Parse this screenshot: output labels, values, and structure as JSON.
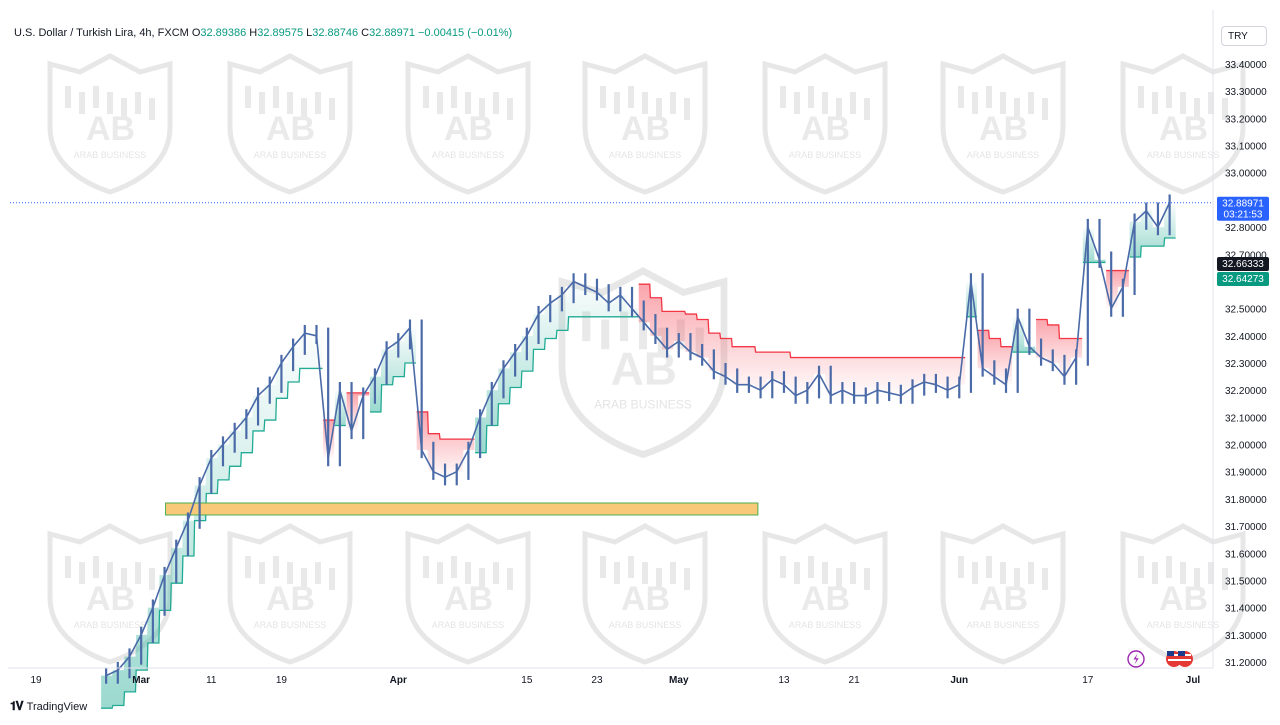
{
  "header": {
    "symbol": "U.S. Dollar / Turkish Lira, 4h, FXCM",
    "open_label": "O",
    "open": "32.89386",
    "high_label": "H",
    "high": "32.89575",
    "low_label": "L",
    "low": "32.88746",
    "close_label": "C",
    "close": "32.88971",
    "change": "−0.00415 (−0.01%)"
  },
  "currency_button": "TRY",
  "footer": {
    "brand": "TradingView"
  },
  "watermark": {
    "text": "ARAB BUSINESS"
  },
  "chart_data": {
    "type": "line",
    "ylim": [
      31.18,
      33.46
    ],
    "y_ticks": [
      "33.40000",
      "33.30000",
      "33.20000",
      "33.10000",
      "33.00000",
      "32.90000",
      "32.80000",
      "32.70000",
      "32.60000",
      "32.50000",
      "32.40000",
      "32.30000",
      "32.20000",
      "32.10000",
      "32.00000",
      "31.90000",
      "31.80000",
      "31.70000",
      "31.60000",
      "31.50000",
      "31.40000",
      "31.30000",
      "31.20000"
    ],
    "x_ticks": [
      {
        "label": "19",
        "idx": 0,
        "bold": false
      },
      {
        "label": "Mar",
        "idx": 9,
        "bold": true
      },
      {
        "label": "11",
        "idx": 15,
        "bold": false
      },
      {
        "label": "19",
        "idx": 21,
        "bold": false
      },
      {
        "label": "Apr",
        "idx": 31,
        "bold": true
      },
      {
        "label": "15",
        "idx": 42,
        "bold": false
      },
      {
        "label": "23",
        "idx": 48,
        "bold": false
      },
      {
        "label": "May",
        "idx": 55,
        "bold": true
      },
      {
        "label": "13",
        "idx": 64,
        "bold": false
      },
      {
        "label": "21",
        "idx": 70,
        "bold": false
      },
      {
        "label": "Jun",
        "idx": 79,
        "bold": true
      },
      {
        "label": "17",
        "idx": 90,
        "bold": false
      },
      {
        "label": "Jul",
        "idx": 99,
        "bold": true
      }
    ],
    "x_count": 100,
    "price_series": {
      "name": "USD/TRY",
      "values": [
        [
          6,
          31.15
        ],
        [
          7,
          31.17
        ],
        [
          8,
          31.22
        ],
        [
          9,
          31.3
        ],
        [
          10,
          31.4
        ],
        [
          11,
          31.52
        ],
        [
          12,
          31.62
        ],
        [
          13,
          31.72
        ],
        [
          14,
          31.85
        ],
        [
          15,
          31.95
        ],
        [
          16,
          32.0
        ],
        [
          17,
          32.05
        ],
        [
          18,
          32.1
        ],
        [
          19,
          32.18
        ],
        [
          20,
          32.22
        ],
        [
          21,
          32.3
        ],
        [
          22,
          32.36
        ],
        [
          23,
          32.41
        ],
        [
          24,
          32.4
        ],
        [
          25,
          31.95
        ],
        [
          26,
          32.2
        ],
        [
          27,
          32.05
        ],
        [
          28,
          32.18
        ],
        [
          29,
          32.25
        ],
        [
          30,
          32.35
        ],
        [
          31,
          32.38
        ],
        [
          32,
          32.43
        ],
        [
          33,
          31.98
        ],
        [
          34,
          31.9
        ],
        [
          35,
          31.88
        ],
        [
          36,
          31.9
        ],
        [
          37,
          31.98
        ],
        [
          38,
          32.1
        ],
        [
          39,
          32.2
        ],
        [
          40,
          32.28
        ],
        [
          41,
          32.34
        ],
        [
          42,
          32.4
        ],
        [
          43,
          32.48
        ],
        [
          44,
          32.52
        ],
        [
          45,
          32.55
        ],
        [
          46,
          32.6
        ],
        [
          47,
          32.58
        ],
        [
          48,
          32.56
        ],
        [
          49,
          32.52
        ],
        [
          50,
          32.55
        ],
        [
          51,
          32.5
        ],
        [
          52,
          32.45
        ],
        [
          53,
          32.4
        ],
        [
          54,
          32.35
        ],
        [
          55,
          32.38
        ],
        [
          56,
          32.34
        ],
        [
          57,
          32.32
        ],
        [
          58,
          32.27
        ],
        [
          59,
          32.25
        ],
        [
          60,
          32.22
        ],
        [
          61,
          32.22
        ],
        [
          62,
          32.2
        ],
        [
          63,
          32.24
        ],
        [
          64,
          32.22
        ],
        [
          65,
          32.18
        ],
        [
          66,
          32.2
        ],
        [
          67,
          32.26
        ],
        [
          68,
          32.18
        ],
        [
          69,
          32.2
        ],
        [
          70,
          32.18
        ],
        [
          71,
          32.18
        ],
        [
          72,
          32.2
        ],
        [
          73,
          32.19
        ],
        [
          74,
          32.18
        ],
        [
          75,
          32.21
        ],
        [
          76,
          32.23
        ],
        [
          77,
          32.22
        ],
        [
          78,
          32.2
        ],
        [
          79,
          32.22
        ],
        [
          80,
          32.6
        ],
        [
          81,
          32.28
        ],
        [
          82,
          32.25
        ],
        [
          83,
          32.22
        ],
        [
          84,
          32.47
        ],
        [
          85,
          32.36
        ],
        [
          86,
          32.32
        ],
        [
          87,
          32.3
        ],
        [
          88,
          32.25
        ],
        [
          89,
          32.32
        ],
        [
          90,
          32.8
        ],
        [
          91,
          32.68
        ],
        [
          92,
          32.5
        ],
        [
          93,
          32.58
        ],
        [
          94,
          32.82
        ],
        [
          95,
          32.86
        ],
        [
          96,
          32.8
        ],
        [
          97,
          32.89
        ]
      ]
    },
    "last_price": "32.88971",
    "countdown": "03:21:53",
    "supertrend_down_label": "32.66333",
    "supertrend_up_label": "32.64273",
    "support_zone": {
      "from_idx": 11,
      "to_idx": 61,
      "low": 31.76,
      "high": 31.78
    },
    "colors": {
      "price": "#4a6aa8",
      "up_line": "#22ab94",
      "down_line": "#f23645",
      "zone_fill": "#f9c97a",
      "zone_border": "#4caf50",
      "last_price": "#2962ff",
      "label_dark": "#131722",
      "label_green": "#089981"
    }
  }
}
